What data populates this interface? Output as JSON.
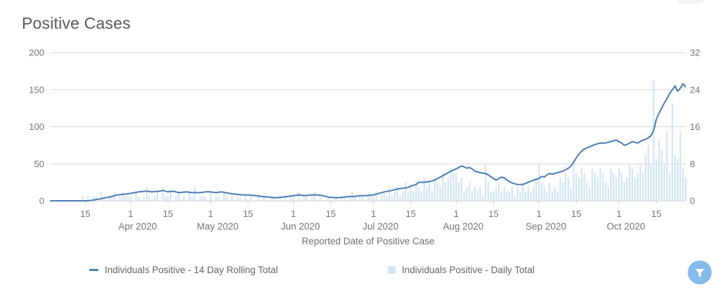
{
  "header": {
    "title": "Positive Cases"
  },
  "colors": {
    "title_text": "#595959",
    "axis_text": "#757575",
    "gridline": "#d8d8d8",
    "axis_line": "#c9c9c9",
    "line_series": "#4c7cb4",
    "bar_series": "#d3e6f8",
    "legend_text": "#666666",
    "filter_button_bg": "#85bbe8",
    "filter_icon": "#ffffff"
  },
  "chart_data": {
    "type": "combo_line_bar",
    "title": "Positive Cases",
    "xlabel": "Reported Date of Positive Case",
    "start_date": "2020-03-02",
    "days_total": 239,
    "grid": "horizontal-only",
    "left_axis": {
      "label": "",
      "ticks": [
        0,
        50,
        100,
        150,
        200
      ],
      "max": 200
    },
    "right_axis": {
      "label": "",
      "ticks": [
        0,
        8,
        16,
        24,
        32
      ],
      "max": 32
    },
    "x_ticks": [
      {
        "day": 13,
        "label": "15",
        "month": ""
      },
      {
        "day": 30,
        "label": "1",
        "month": "Apr 2020"
      },
      {
        "day": 44,
        "label": "15",
        "month": ""
      },
      {
        "day": 60,
        "label": "1",
        "month": "May 2020"
      },
      {
        "day": 74,
        "label": "15",
        "month": ""
      },
      {
        "day": 91,
        "label": "1",
        "month": "Jun 2020"
      },
      {
        "day": 105,
        "label": "15",
        "month": ""
      },
      {
        "day": 121,
        "label": "1",
        "month": "Jul 2020"
      },
      {
        "day": 135,
        "label": "15",
        "month": ""
      },
      {
        "day": 152,
        "label": "1",
        "month": "Aug 2020"
      },
      {
        "day": 166,
        "label": "15",
        "month": ""
      },
      {
        "day": 183,
        "label": "1",
        "month": "Sep 2020"
      },
      {
        "day": 197,
        "label": "15",
        "month": ""
      },
      {
        "day": 213,
        "label": "1",
        "month": "Oct 2020"
      },
      {
        "day": 227,
        "label": "15",
        "month": ""
      }
    ],
    "series": [
      {
        "name": "Individuals Positive - 14 Day Rolling Total",
        "type": "line",
        "axis": "left",
        "color": "#4c7cb4",
        "anchors": [
          [
            0,
            0
          ],
          [
            14,
            0
          ],
          [
            16,
            1
          ],
          [
            19,
            3
          ],
          [
            22,
            5
          ],
          [
            25,
            8
          ],
          [
            28,
            9
          ],
          [
            30,
            10
          ],
          [
            33,
            12
          ],
          [
            36,
            13
          ],
          [
            38,
            12
          ],
          [
            41,
            13
          ],
          [
            42,
            14
          ],
          [
            44,
            12
          ],
          [
            46,
            13
          ],
          [
            48,
            11
          ],
          [
            51,
            12
          ],
          [
            53,
            11
          ],
          [
            56,
            11
          ],
          [
            58,
            12
          ],
          [
            60,
            12
          ],
          [
            62,
            11
          ],
          [
            64,
            12
          ],
          [
            67,
            10
          ],
          [
            69,
            9
          ],
          [
            72,
            8
          ],
          [
            74,
            8
          ],
          [
            77,
            7
          ],
          [
            79,
            6
          ],
          [
            82,
            5
          ],
          [
            84,
            4
          ],
          [
            87,
            5
          ],
          [
            89,
            6
          ],
          [
            91,
            7
          ],
          [
            93,
            8
          ],
          [
            95,
            7
          ],
          [
            98,
            8
          ],
          [
            100,
            8
          ],
          [
            102,
            7
          ],
          [
            104,
            5
          ],
          [
            107,
            4
          ],
          [
            110,
            5
          ],
          [
            112,
            6
          ],
          [
            114,
            6
          ],
          [
            116,
            7
          ],
          [
            118,
            7
          ],
          [
            121,
            8
          ],
          [
            123,
            10
          ],
          [
            125,
            12
          ],
          [
            128,
            14
          ],
          [
            130,
            16
          ],
          [
            132,
            17
          ],
          [
            134,
            18
          ],
          [
            135,
            20
          ],
          [
            137,
            22
          ],
          [
            138,
            25
          ],
          [
            140,
            25
          ],
          [
            142,
            26
          ],
          [
            144,
            28
          ],
          [
            146,
            32
          ],
          [
            148,
            36
          ],
          [
            150,
            40
          ],
          [
            152,
            43
          ],
          [
            153,
            45
          ],
          [
            154,
            47
          ],
          [
            155,
            46
          ],
          [
            156,
            44
          ],
          [
            157,
            45
          ],
          [
            158,
            43
          ],
          [
            159,
            40
          ],
          [
            161,
            38
          ],
          [
            163,
            37
          ],
          [
            164,
            35
          ],
          [
            166,
            30
          ],
          [
            167,
            28
          ],
          [
            168,
            30
          ],
          [
            169,
            32
          ],
          [
            170,
            31
          ],
          [
            171,
            28
          ],
          [
            173,
            24
          ],
          [
            175,
            22
          ],
          [
            177,
            22
          ],
          [
            179,
            25
          ],
          [
            181,
            28
          ],
          [
            183,
            30
          ],
          [
            184,
            33
          ],
          [
            185,
            32
          ],
          [
            186,
            35
          ],
          [
            187,
            37
          ],
          [
            188,
            36
          ],
          [
            190,
            38
          ],
          [
            192,
            40
          ],
          [
            194,
            44
          ],
          [
            195,
            47
          ],
          [
            196,
            52
          ],
          [
            197,
            58
          ],
          [
            198,
            63
          ],
          [
            199,
            67
          ],
          [
            200,
            70
          ],
          [
            202,
            73
          ],
          [
            204,
            76
          ],
          [
            206,
            78
          ],
          [
            208,
            78
          ],
          [
            210,
            80
          ],
          [
            212,
            82
          ],
          [
            213,
            80
          ],
          [
            214,
            78
          ],
          [
            215,
            75
          ],
          [
            216,
            76
          ],
          [
            217,
            78
          ],
          [
            218,
            80
          ],
          [
            219,
            79
          ],
          [
            220,
            78
          ],
          [
            221,
            80
          ],
          [
            222,
            82
          ],
          [
            223,
            83
          ],
          [
            224,
            85
          ],
          [
            225,
            88
          ],
          [
            226,
            95
          ],
          [
            227,
            110
          ],
          [
            228,
            118
          ],
          [
            229,
            125
          ],
          [
            230,
            132
          ],
          [
            231,
            138
          ],
          [
            232,
            145
          ],
          [
            233,
            150
          ],
          [
            234,
            155
          ],
          [
            235,
            148
          ],
          [
            236,
            152
          ],
          [
            237,
            158
          ],
          [
            238,
            154
          ]
        ]
      },
      {
        "name": "Individuals Positive - Daily Total",
        "type": "bar",
        "axis": "right",
        "color": "#d3e6f8",
        "values": [
          0,
          0,
          0,
          0,
          0,
          0,
          0,
          0,
          0,
          0,
          0,
          0,
          1,
          0,
          1,
          0,
          1,
          1,
          0,
          2,
          1,
          0,
          1,
          1,
          2,
          0,
          1,
          2,
          1,
          1,
          1,
          0,
          2,
          1,
          0,
          1,
          3,
          1,
          0,
          1,
          2,
          0,
          3,
          1,
          1,
          2,
          0,
          1,
          2,
          0,
          1,
          0,
          2,
          1,
          3,
          0,
          1,
          1,
          1,
          0,
          2,
          0,
          1,
          1,
          0,
          2,
          1,
          0,
          1,
          0,
          1,
          1,
          0,
          1,
          0,
          1,
          0,
          0,
          1,
          0,
          1,
          0,
          0,
          1,
          0,
          0,
          1,
          0,
          1,
          0,
          1,
          1,
          0,
          2,
          0,
          1,
          1,
          0,
          1,
          2,
          0,
          1,
          0,
          0,
          1,
          0,
          0,
          1,
          0,
          1,
          1,
          0,
          1,
          2,
          1,
          0,
          1,
          1,
          0,
          1,
          1,
          1,
          2,
          0,
          1,
          2,
          1,
          3,
          1,
          2,
          3,
          1,
          2,
          4,
          2,
          3,
          2,
          4,
          3,
          2,
          5,
          3,
          4,
          2,
          5,
          4,
          3,
          6,
          4,
          5,
          7,
          6,
          6,
          4,
          5,
          2,
          3,
          4,
          2,
          3,
          2,
          3,
          1,
          8,
          4,
          2,
          2,
          3,
          4,
          2,
          3,
          2,
          2,
          3,
          1,
          3,
          2,
          4,
          2,
          3,
          2,
          3,
          5,
          8,
          4,
          3,
          2,
          4,
          2,
          3,
          2,
          5,
          4,
          6,
          5,
          3,
          8,
          6,
          5,
          7,
          6,
          4,
          3,
          7,
          6,
          5,
          7,
          6,
          4,
          3,
          7,
          6,
          5,
          7,
          6,
          4,
          5,
          8,
          7,
          5,
          6,
          8,
          6,
          10,
          12,
          8,
          26,
          9,
          13,
          11,
          8,
          15,
          6,
          21,
          10,
          9,
          15,
          7,
          5
        ]
      }
    ]
  },
  "legend": {
    "items": [
      {
        "label": "Individuals Positive - 14 Day Rolling Total",
        "swatch": "line-swatch"
      },
      {
        "label": "Individuals Positive - Daily Total",
        "swatch": "square-swatch"
      }
    ]
  },
  "filter_button": {
    "icon": "funnel-icon"
  }
}
